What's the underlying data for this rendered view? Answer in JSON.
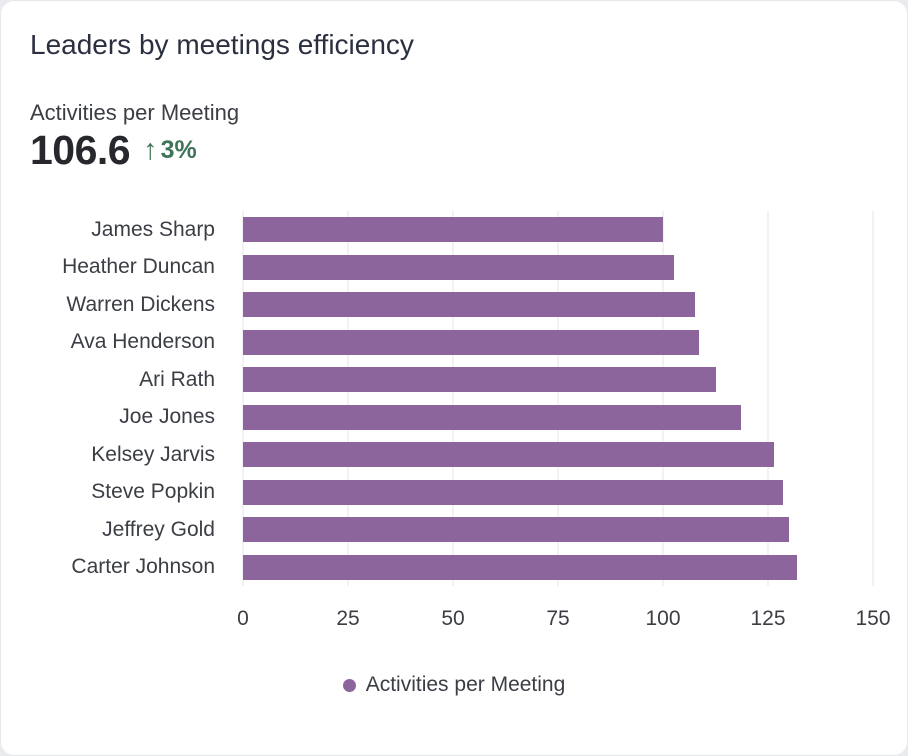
{
  "card": {
    "title": "Leaders by meetings efficiency",
    "kpi": {
      "label": "Activities per Meeting",
      "value": "106.6",
      "delta_arrow": "↑",
      "delta": "3%",
      "delta_direction": "up"
    }
  },
  "chart_data": {
    "type": "bar",
    "orientation": "horizontal",
    "title": "Leaders by meetings efficiency",
    "series_name": "Activities per Meeting",
    "categories": [
      "James Sharp",
      "Heather Duncan",
      "Warren Dickens",
      "Ava Henderson",
      "Ari Rath",
      "Joe Jones",
      "Kelsey Jarvis",
      "Steve Popkin",
      "Jeffrey Gold",
      "Carter Johnson"
    ],
    "values": [
      100,
      102.5,
      107.5,
      108.5,
      112.5,
      118.5,
      126.5,
      128.5,
      130,
      132
    ],
    "xlabel": "",
    "ylabel": "",
    "xlim": [
      0,
      150
    ],
    "x_ticks": [
      0,
      25,
      50,
      75,
      100,
      125,
      150
    ],
    "grid": true,
    "legend_position": "bottom",
    "bar_color": "#8c659d"
  },
  "colors": {
    "bar": "#8c659d",
    "delta_green": "#3e7458",
    "title_text": "#2b3040",
    "body_text": "#3b3e44",
    "kpi_text": "#26282d",
    "gridline": "#f2f2f5",
    "card_background": "#ffffff",
    "page_background": "#eaebee"
  }
}
